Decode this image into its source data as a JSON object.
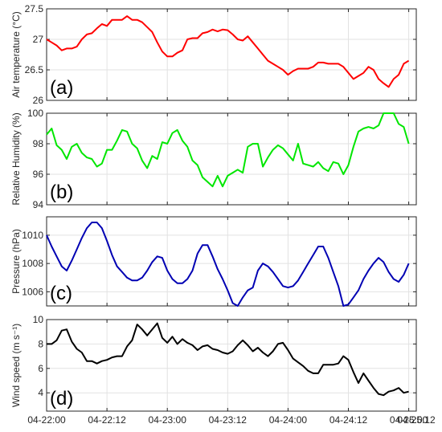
{
  "chart_data": [
    {
      "type": "line",
      "panel_label": "(a)",
      "ylabel": "Air temperature (°C)",
      "ylim": [
        26,
        27.5
      ],
      "yticks": [
        26,
        26.5,
        27,
        27.5
      ],
      "ytick_labels": [
        "26",
        "26.5",
        "27",
        "27.5"
      ],
      "grid": true,
      "color": "#ff0000",
      "x": [
        0,
        1,
        2,
        3,
        4,
        5,
        6,
        7,
        8,
        9,
        10,
        11,
        12,
        13,
        14,
        15,
        16,
        17,
        18,
        19,
        20,
        21,
        22,
        23,
        24,
        25,
        26,
        27,
        28,
        29,
        30,
        31,
        32,
        33,
        34,
        35,
        36,
        37,
        38,
        39,
        40,
        41,
        42,
        43,
        44,
        45,
        46,
        47,
        48,
        49,
        50,
        51,
        52,
        53,
        54,
        55,
        56,
        57,
        58,
        59,
        60,
        61,
        62,
        63,
        64,
        65,
        66,
        67,
        68,
        69,
        70,
        71,
        72
      ],
      "values": [
        27.0,
        26.95,
        26.9,
        26.82,
        26.85,
        26.85,
        26.88,
        27.0,
        27.08,
        27.1,
        27.18,
        27.25,
        27.22,
        27.32,
        27.32,
        27.32,
        27.38,
        27.32,
        27.32,
        27.28,
        27.2,
        27.12,
        26.95,
        26.8,
        26.72,
        26.72,
        26.78,
        26.82,
        27.0,
        27.02,
        27.02,
        27.1,
        27.12,
        27.16,
        27.13,
        27.16,
        27.15,
        27.08,
        27.0,
        26.98,
        27.05,
        26.95,
        26.85,
        26.75,
        26.65,
        26.6,
        26.55,
        26.5,
        26.42,
        26.48,
        26.52,
        26.52,
        26.52,
        26.55,
        26.62,
        26.62,
        26.6,
        26.6,
        26.6,
        26.55,
        26.45,
        26.35,
        26.4,
        26.45,
        26.55,
        26.5,
        26.35,
        26.28,
        26.22,
        26.35,
        26.42,
        26.6,
        26.65
      ]
    },
    {
      "type": "line",
      "panel_label": "(b)",
      "ylabel": "Relative Humidity (%)",
      "ylim": [
        94,
        100
      ],
      "yticks": [
        94,
        96,
        98,
        100
      ],
      "ytick_labels": [
        "94",
        "96",
        "98",
        "100"
      ],
      "grid": true,
      "color": "#00e600",
      "x": [
        0,
        1,
        2,
        3,
        4,
        5,
        6,
        7,
        8,
        9,
        10,
        11,
        12,
        13,
        14,
        15,
        16,
        17,
        18,
        19,
        20,
        21,
        22,
        23,
        24,
        25,
        26,
        27,
        28,
        29,
        30,
        31,
        32,
        33,
        34,
        35,
        36,
        37,
        38,
        39,
        40,
        41,
        42,
        43,
        44,
        45,
        46,
        47,
        48,
        49,
        50,
        51,
        52,
        53,
        54,
        55,
        56,
        57,
        58,
        59,
        60,
        61,
        62,
        63,
        64,
        65,
        66,
        67,
        68,
        69,
        70,
        71,
        72
      ],
      "values": [
        98.6,
        99.0,
        97.9,
        97.6,
        97.0,
        97.8,
        98.0,
        97.4,
        97.1,
        97.0,
        96.5,
        96.7,
        97.6,
        97.6,
        98.2,
        98.9,
        98.8,
        98.0,
        97.7,
        96.9,
        96.4,
        97.2,
        97.0,
        98.1,
        98.0,
        98.7,
        98.9,
        98.2,
        97.8,
        96.9,
        96.6,
        95.8,
        95.5,
        95.2,
        95.9,
        95.2,
        95.9,
        96.1,
        96.3,
        96.1,
        97.8,
        98.0,
        98.0,
        96.5,
        97.1,
        97.6,
        97.9,
        97.7,
        97.3,
        96.9,
        98.0,
        96.7,
        96.6,
        96.5,
        96.8,
        96.4,
        96.2,
        96.8,
        96.7,
        96.0,
        96.6,
        97.8,
        98.8,
        99.0,
        99.1,
        99.0,
        99.2,
        100.0,
        100.0,
        100.0,
        99.3,
        99.1,
        98.0
      ]
    },
    {
      "type": "line",
      "panel_label": "(c)",
      "ylabel": "Pressure (hPa)",
      "ylim": [
        1005,
        1011.3
      ],
      "yticks": [
        1006,
        1008,
        1010
      ],
      "ytick_labels": [
        "1006",
        "1008",
        "1010"
      ],
      "grid": true,
      "color": "#0000b3",
      "x": [
        0,
        1,
        2,
        3,
        4,
        5,
        6,
        7,
        8,
        9,
        10,
        11,
        12,
        13,
        14,
        15,
        16,
        17,
        18,
        19,
        20,
        21,
        22,
        23,
        24,
        25,
        26,
        27,
        28,
        29,
        30,
        31,
        32,
        33,
        34,
        35,
        36,
        37,
        38,
        39,
        40,
        41,
        42,
        43,
        44,
        45,
        46,
        47,
        48,
        49,
        50,
        51,
        52,
        53,
        54,
        55,
        56,
        57,
        58,
        59,
        60,
        61,
        62,
        63,
        64,
        65,
        66,
        67,
        68,
        69,
        70,
        71,
        72
      ],
      "values": [
        1010.0,
        1009.2,
        1008.5,
        1007.8,
        1007.5,
        1008.2,
        1009.0,
        1009.8,
        1010.5,
        1010.9,
        1010.9,
        1010.5,
        1009.6,
        1008.6,
        1007.8,
        1007.4,
        1007.0,
        1006.8,
        1006.8,
        1007.0,
        1007.5,
        1008.1,
        1008.5,
        1008.4,
        1007.5,
        1006.9,
        1006.6,
        1006.6,
        1006.9,
        1007.5,
        1008.7,
        1009.3,
        1009.3,
        1008.5,
        1007.6,
        1006.9,
        1006.1,
        1005.2,
        1005.0,
        1005.6,
        1006.1,
        1006.3,
        1007.5,
        1008.0,
        1007.8,
        1007.4,
        1006.9,
        1006.4,
        1006.3,
        1006.4,
        1006.8,
        1007.4,
        1008.0,
        1008.6,
        1009.2,
        1009.2,
        1008.4,
        1007.4,
        1006.4,
        1005.0,
        1005.1,
        1005.6,
        1006.1,
        1006.9,
        1007.5,
        1008.0,
        1008.4,
        1008.1,
        1007.4,
        1006.9,
        1006.7,
        1007.2,
        1008.0
      ]
    },
    {
      "type": "line",
      "panel_label": "(d)",
      "ylabel": "Wind speed (m s⁻¹)",
      "ylim": [
        2.5,
        10
      ],
      "yticks": [
        4,
        6,
        8,
        10
      ],
      "ytick_labels": [
        "4",
        "6",
        "8",
        "10"
      ],
      "grid": true,
      "color": "#000000",
      "x": [
        0,
        1,
        2,
        3,
        4,
        5,
        6,
        7,
        8,
        9,
        10,
        11,
        12,
        13,
        14,
        15,
        16,
        17,
        18,
        19,
        20,
        21,
        22,
        23,
        24,
        25,
        26,
        27,
        28,
        29,
        30,
        31,
        32,
        33,
        34,
        35,
        36,
        37,
        38,
        39,
        40,
        41,
        42,
        43,
        44,
        45,
        46,
        47,
        48,
        49,
        50,
        51,
        52,
        53,
        54,
        55,
        56,
        57,
        58,
        59,
        60,
        61,
        62,
        63,
        64,
        65,
        66,
        67,
        68,
        69,
        70,
        71,
        72
      ],
      "values": [
        8.0,
        8.0,
        8.3,
        9.1,
        9.2,
        8.2,
        7.6,
        7.3,
        6.6,
        6.6,
        6.4,
        6.6,
        6.7,
        6.9,
        7.0,
        7.0,
        7.8,
        8.3,
        9.6,
        9.2,
        8.7,
        9.2,
        9.7,
        8.5,
        8.1,
        8.6,
        8.0,
        8.4,
        8.1,
        7.9,
        7.5,
        7.8,
        7.9,
        7.6,
        7.5,
        7.3,
        7.2,
        7.4,
        7.9,
        8.3,
        7.9,
        7.4,
        7.7,
        7.3,
        7.0,
        7.4,
        8.0,
        8.1,
        7.5,
        6.8,
        6.5,
        6.2,
        5.8,
        5.6,
        5.6,
        6.3,
        6.3,
        6.3,
        6.4,
        7.0,
        6.7,
        5.7,
        4.8,
        5.6,
        5.0,
        4.4,
        3.9,
        3.8,
        4.1,
        4.2,
        4.4,
        4.0,
        4.1
      ],
      "xtick_labels": [
        "04-22:00",
        "04-22:12",
        "04-23:00",
        "04-23:12",
        "04-24:00",
        "04-24:12",
        "04-25:00",
        "04-25:12"
      ]
    }
  ]
}
